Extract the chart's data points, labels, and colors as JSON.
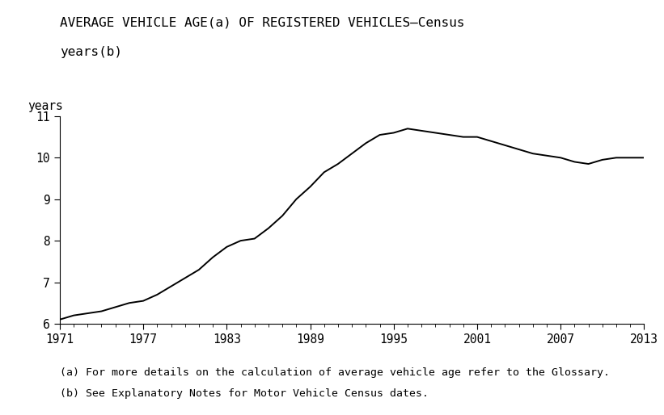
{
  "title_line1": "AVERAGE VEHICLE AGE(a) OF REGISTERED VEHICLES—Census",
  "title_line2": "years(b)",
  "ylabel": "years",
  "footnote1": "(a) For more details on the calculation of average vehicle age refer to the Glossary.",
  "footnote2": "(b) See Explanatory Notes for Motor Vehicle Census dates.",
  "xlim": [
    1971,
    2013
  ],
  "ylim": [
    6,
    11
  ],
  "yticks": [
    6,
    7,
    8,
    9,
    10,
    11
  ],
  "xticks": [
    1971,
    1977,
    1983,
    1989,
    1995,
    2001,
    2007,
    2013
  ],
  "line_color": "#000000",
  "line_width": 1.4,
  "background_color": "#ffffff",
  "title_fontsize": 11.5,
  "tick_fontsize": 10.5,
  "footnote_fontsize": 9.5,
  "ylabel_fontsize": 10.5,
  "data_x": [
    1971,
    1972,
    1973,
    1974,
    1975,
    1976,
    1977,
    1978,
    1979,
    1980,
    1981,
    1982,
    1983,
    1984,
    1985,
    1986,
    1987,
    1988,
    1989,
    1990,
    1991,
    1992,
    1993,
    1994,
    1995,
    1996,
    1997,
    1998,
    1999,
    2000,
    2001,
    2002,
    2003,
    2004,
    2005,
    2006,
    2007,
    2008,
    2009,
    2010,
    2011,
    2012,
    2013
  ],
  "data_y": [
    6.1,
    6.2,
    6.25,
    6.3,
    6.4,
    6.5,
    6.55,
    6.7,
    6.9,
    7.1,
    7.3,
    7.6,
    7.85,
    8.0,
    8.05,
    8.3,
    8.6,
    9.0,
    9.3,
    9.65,
    9.85,
    10.1,
    10.35,
    10.55,
    10.6,
    10.7,
    10.65,
    10.6,
    10.55,
    10.5,
    10.5,
    10.4,
    10.3,
    10.2,
    10.1,
    10.05,
    10.0,
    9.9,
    9.85,
    9.95,
    10.0,
    10.0,
    10.0
  ]
}
